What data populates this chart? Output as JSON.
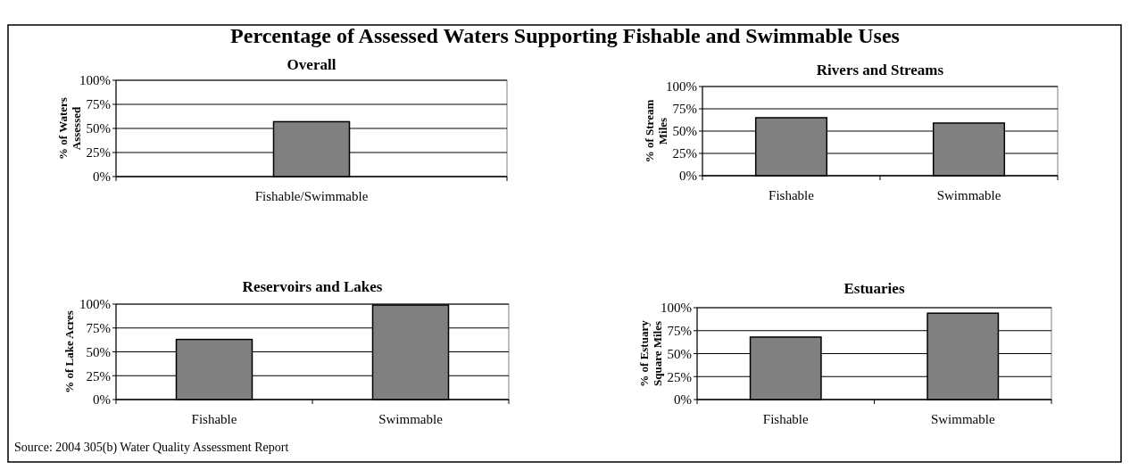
{
  "chart_data": [
    {
      "type": "other",
      "title": "Percentage of Assessed Waters Supporting Fishable and Swimmable Uses",
      "annotations": [
        "Source: 2004 305(b) Water Quality Assessment Report"
      ]
    },
    {
      "type": "bar",
      "title": "Overall",
      "ylabel": "% of Waters Assessed",
      "categories": [
        "Fishable/Swimmable"
      ],
      "values": [
        57
      ],
      "color": "#808080",
      "ylim": [
        0,
        100
      ],
      "yticks": [
        {
          "value": 0,
          "label": "0%"
        },
        {
          "value": 25,
          "label": "25%"
        },
        {
          "value": 50,
          "label": "50%"
        },
        {
          "value": 75,
          "label": "75%"
        },
        {
          "value": 100,
          "label": "100%"
        }
      ],
      "grid": "y"
    },
    {
      "type": "bar",
      "title": "Rivers and Streams",
      "ylabel": "% of Stream Miles",
      "categories": [
        "Fishable",
        "Swimmable"
      ],
      "values": [
        65,
        59
      ],
      "color": "#808080",
      "ylim": [
        0,
        100
      ],
      "yticks": [
        {
          "value": 0,
          "label": "0%"
        },
        {
          "value": 25,
          "label": "25%"
        },
        {
          "value": 50,
          "label": "50%"
        },
        {
          "value": 75,
          "label": "75%"
        },
        {
          "value": 100,
          "label": "100%"
        }
      ],
      "grid": "y"
    },
    {
      "type": "bar",
      "title": "Reservoirs and Lakes",
      "ylabel": "% of Lake Acres",
      "categories": [
        "Fishable",
        "Swimmable"
      ],
      "values": [
        63,
        99
      ],
      "color": "#808080",
      "ylim": [
        0,
        100
      ],
      "yticks": [
        {
          "value": 0,
          "label": "0%"
        },
        {
          "value": 25,
          "label": "25%"
        },
        {
          "value": 50,
          "label": "50%"
        },
        {
          "value": 75,
          "label": "75%"
        },
        {
          "value": 100,
          "label": "100%"
        }
      ],
      "grid": "y"
    },
    {
      "type": "bar",
      "title": "Estuaries",
      "ylabel": "% of Estuary Square Miles",
      "categories": [
        "Fishable",
        "Swimmable"
      ],
      "values": [
        68,
        94
      ],
      "color": "#808080",
      "ylim": [
        0,
        100
      ],
      "yticks": [
        {
          "value": 0,
          "label": "0%"
        },
        {
          "value": 25,
          "label": "25%"
        },
        {
          "value": 50,
          "label": "50%"
        },
        {
          "value": 75,
          "label": "75%"
        },
        {
          "value": 100,
          "label": "100%"
        }
      ],
      "grid": "y"
    }
  ]
}
